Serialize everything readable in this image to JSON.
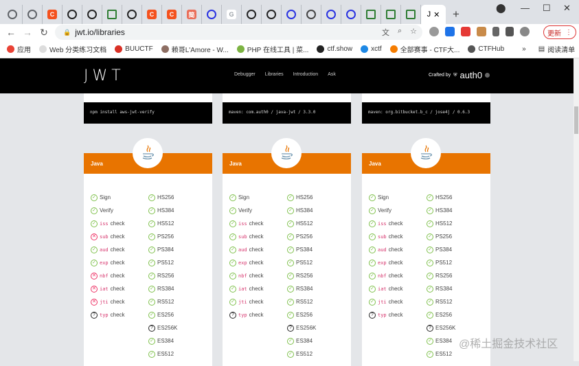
{
  "browser": {
    "tabs": [
      {
        "icon": "globe-icon",
        "color": "#5f6368"
      },
      {
        "icon": "globe-icon",
        "color": "#5f6368"
      },
      {
        "icon": "csdn-icon",
        "color": "#f4511e",
        "letter": "C"
      },
      {
        "icon": "github-icon",
        "color": "#222"
      },
      {
        "icon": "github-icon",
        "color": "#222"
      },
      {
        "icon": "bar-icon",
        "color": "#2e7d32"
      },
      {
        "icon": "github-icon",
        "color": "#222"
      },
      {
        "icon": "csdn-icon",
        "color": "#f4511e",
        "letter": "C"
      },
      {
        "icon": "csdn-icon",
        "color": "#f4511e",
        "letter": "C"
      },
      {
        "icon": "jianshu-icon",
        "color": "#ea6f5a",
        "letter": "简"
      },
      {
        "icon": "baidu-icon",
        "color": "#2932e1"
      },
      {
        "icon": "google-icon",
        "color": "#9aa0a6",
        "letter": "G"
      },
      {
        "icon": "github-icon",
        "color": "#222"
      },
      {
        "icon": "github-icon",
        "color": "#222"
      },
      {
        "icon": "baidu-icon",
        "color": "#2932e1"
      },
      {
        "icon": "ink-icon",
        "color": "#444"
      },
      {
        "icon": "baidu-icon",
        "color": "#2932e1"
      },
      {
        "icon": "baidu-icon",
        "color": "#2932e1"
      },
      {
        "icon": "bar-icon",
        "color": "#2e7d32"
      },
      {
        "icon": "bar-icon",
        "color": "#2e7d32"
      },
      {
        "icon": "bar-icon",
        "color": "#2e7d32"
      }
    ],
    "active_tab_label": "J",
    "url": "jwt.io/libraries",
    "update_label": "更新",
    "bookmarks": [
      {
        "label": "应用",
        "color": "#e94235"
      },
      {
        "label": "Web 分类练习文档",
        "color": "#ddd"
      },
      {
        "label": "BUUCTF",
        "color": "#d93025"
      },
      {
        "label": "赖哥L'Amore - W...",
        "color": "#8d6e63"
      },
      {
        "label": "PHP 在线工具 | 菜...",
        "color": "#7cb342"
      },
      {
        "label": "ctf.show",
        "color": "#222"
      },
      {
        "label": "xctf",
        "color": "#1e88e5"
      },
      {
        "label": "全部赛事 - CTF大...",
        "color": "#f57c00"
      },
      {
        "label": "CTFHub",
        "color": "#555"
      }
    ],
    "bookmarks_more": "»",
    "reading_list": "阅读清单"
  },
  "site": {
    "logo": "JWT",
    "nav": [
      "Debugger",
      "Libraries",
      "Introduction",
      "Ask"
    ],
    "crafted_by": "Crafted by",
    "brand": "auth0"
  },
  "colors": {
    "accent": "#e87400",
    "check": "#7ec04a",
    "cross": "#e33366",
    "header": "#000000"
  },
  "columns": [
    {
      "install": "npm install aws-jwt-verify",
      "language": "Java",
      "features": [
        {
          "label": "Sign",
          "status": "yes"
        },
        {
          "label": "Verify",
          "status": "yes"
        },
        {
          "claim": "iss",
          "label": "check",
          "status": "yes"
        },
        {
          "claim": "sub",
          "label": "check",
          "status": "no"
        },
        {
          "claim": "aud",
          "label": "check",
          "status": "yes"
        },
        {
          "claim": "exp",
          "label": "check",
          "status": "yes"
        },
        {
          "claim": "nbf",
          "label": "check",
          "status": "no"
        },
        {
          "claim": "iat",
          "label": "check",
          "status": "no"
        },
        {
          "claim": "jti",
          "label": "check",
          "status": "no"
        },
        {
          "claim": "typ",
          "label": "check",
          "status": "unknown"
        }
      ],
      "algorithms": [
        {
          "label": "HS256",
          "status": "yes"
        },
        {
          "label": "HS384",
          "status": "yes"
        },
        {
          "label": "HS512",
          "status": "yes"
        },
        {
          "label": "PS256",
          "status": "yes"
        },
        {
          "label": "PS384",
          "status": "yes"
        },
        {
          "label": "PS512",
          "status": "yes"
        },
        {
          "label": "RS256",
          "status": "yes"
        },
        {
          "label": "RS384",
          "status": "yes"
        },
        {
          "label": "RS512",
          "status": "yes"
        },
        {
          "label": "ES256",
          "status": "yes"
        },
        {
          "label": "ES256K",
          "status": "unknown"
        },
        {
          "label": "ES384",
          "status": "yes"
        },
        {
          "label": "ES512",
          "status": "yes"
        }
      ]
    },
    {
      "install": "maven: com.auth0 / java-jwt / 3.3.0",
      "language": "Java",
      "features": [
        {
          "label": "Sign",
          "status": "yes"
        },
        {
          "label": "Verify",
          "status": "yes"
        },
        {
          "claim": "iss",
          "label": "check",
          "status": "yes"
        },
        {
          "claim": "sub",
          "label": "check",
          "status": "yes"
        },
        {
          "claim": "aud",
          "label": "check",
          "status": "yes"
        },
        {
          "claim": "exp",
          "label": "check",
          "status": "yes"
        },
        {
          "claim": "nbf",
          "label": "check",
          "status": "yes"
        },
        {
          "claim": "iat",
          "label": "check",
          "status": "yes"
        },
        {
          "claim": "jti",
          "label": "check",
          "status": "yes"
        },
        {
          "claim": "typ",
          "label": "check",
          "status": "unknown"
        }
      ],
      "algorithms": [
        {
          "label": "HS256",
          "status": "yes"
        },
        {
          "label": "HS384",
          "status": "yes"
        },
        {
          "label": "HS512",
          "status": "yes"
        },
        {
          "label": "PS256",
          "status": "yes"
        },
        {
          "label": "PS384",
          "status": "yes"
        },
        {
          "label": "PS512",
          "status": "yes"
        },
        {
          "label": "RS256",
          "status": "yes"
        },
        {
          "label": "RS384",
          "status": "yes"
        },
        {
          "label": "RS512",
          "status": "yes"
        },
        {
          "label": "ES256",
          "status": "yes"
        },
        {
          "label": "ES256K",
          "status": "unknown"
        },
        {
          "label": "ES384",
          "status": "yes"
        },
        {
          "label": "ES512",
          "status": "yes"
        }
      ]
    },
    {
      "install": "maven: org.bitbucket.b_c / jose4j / 0.6.3",
      "language": "Java",
      "features": [
        {
          "label": "Sign",
          "status": "yes"
        },
        {
          "label": "Verify",
          "status": "yes"
        },
        {
          "claim": "iss",
          "label": "check",
          "status": "yes"
        },
        {
          "claim": "sub",
          "label": "check",
          "status": "yes"
        },
        {
          "claim": "aud",
          "label": "check",
          "status": "yes"
        },
        {
          "claim": "exp",
          "label": "check",
          "status": "yes"
        },
        {
          "claim": "nbf",
          "label": "check",
          "status": "yes"
        },
        {
          "claim": "iat",
          "label": "check",
          "status": "yes"
        },
        {
          "claim": "jti",
          "label": "check",
          "status": "yes"
        },
        {
          "claim": "typ",
          "label": "check",
          "status": "unknown"
        }
      ],
      "algorithms": [
        {
          "label": "HS256",
          "status": "yes"
        },
        {
          "label": "HS384",
          "status": "yes"
        },
        {
          "label": "HS512",
          "status": "yes"
        },
        {
          "label": "PS256",
          "status": "yes"
        },
        {
          "label": "PS384",
          "status": "yes"
        },
        {
          "label": "PS512",
          "status": "yes"
        },
        {
          "label": "RS256",
          "status": "yes"
        },
        {
          "label": "RS384",
          "status": "yes"
        },
        {
          "label": "RS512",
          "status": "yes"
        },
        {
          "label": "ES256",
          "status": "yes"
        },
        {
          "label": "ES256K",
          "status": "unknown"
        },
        {
          "label": "ES384",
          "status": "yes"
        },
        {
          "label": "ES512",
          "status": "yes"
        }
      ]
    }
  ],
  "watermark": "@稀土掘金技术社区"
}
